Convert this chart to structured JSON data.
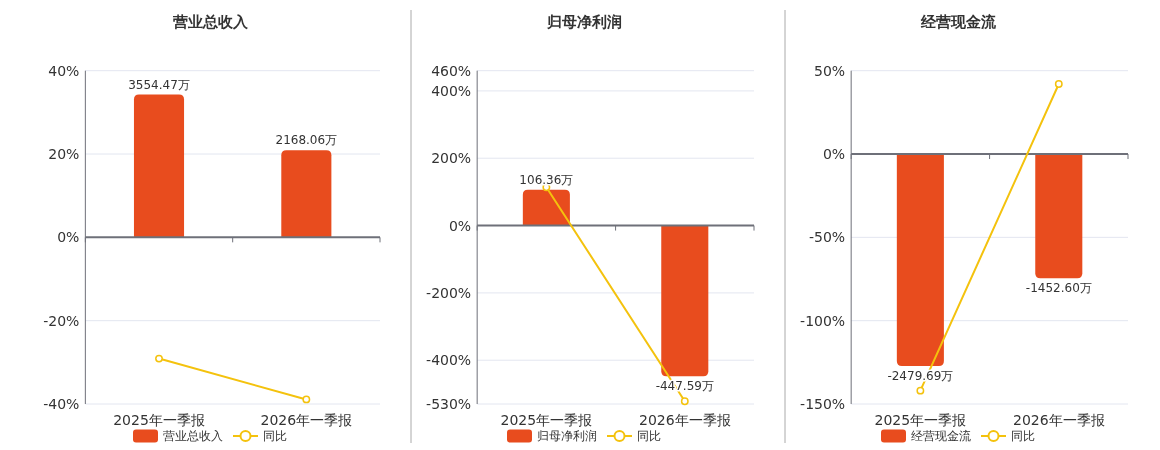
{
  "chart_data": [
    {
      "type": "bar",
      "title": "营业总收入",
      "categories": [
        "2025年一季报",
        "2026年一季报"
      ],
      "series": [
        {
          "name": "营业总收入",
          "axis": "y2",
          "color": "#e84c1e",
          "values": [
            3554.47,
            2168.06
          ],
          "value_labels": [
            "3554.47万",
            "2168.06万"
          ]
        },
        {
          "name": "同比",
          "type": "line",
          "color": "#f4c20d",
          "values": [
            -29.1,
            -38.9
          ]
        }
      ],
      "ylim": [
        -40,
        40
      ],
      "yticks": [
        {
          "value": 40,
          "label": "40%"
        },
        {
          "value": 20,
          "label": "20%"
        },
        {
          "value": 0,
          "label": "0%"
        },
        {
          "value": -20,
          "label": "-20%"
        },
        {
          "value": -40,
          "label": "-40%"
        }
      ],
      "y2lim": [
        -4150,
        4150
      ],
      "tick_labels": "xy",
      "grid": "y",
      "legend": "bottom",
      "marker": "circle"
    },
    {
      "type": "bar",
      "title": "归母净利润",
      "categories": [
        "2025年一季报",
        "2026年一季报"
      ],
      "series": [
        {
          "name": "归母净利润",
          "axis": "y2",
          "color": "#e84c1e",
          "values": [
            106.36,
            -447.59
          ],
          "value_labels": [
            "106.36万",
            "-447.59万"
          ]
        },
        {
          "name": "同比",
          "type": "line",
          "color": "#f4c20d",
          "values": [
            114,
            -522
          ]
        }
      ],
      "ylim": [
        -530,
        460
      ],
      "yticks": [
        {
          "value": 460,
          "label": "460%"
        },
        {
          "value": 400,
          "label": "400%"
        },
        {
          "value": 200,
          "label": "200%"
        },
        {
          "value": 0,
          "label": "0%"
        },
        {
          "value": -200,
          "label": "-200%"
        },
        {
          "value": -400,
          "label": "-400%"
        },
        {
          "value": -530,
          "label": "-530%"
        }
      ],
      "y2lim": [
        -530,
        460
      ],
      "tick_labels": "xy",
      "grid": "y",
      "legend": "bottom",
      "marker": "circle"
    },
    {
      "type": "bar",
      "title": "经营现金流",
      "categories": [
        "2025年一季报",
        "2026年一季报"
      ],
      "series": [
        {
          "name": "经营现金流",
          "axis": "y2",
          "color": "#e84c1e",
          "values": [
            -2479.69,
            -1452.6
          ],
          "value_labels": [
            "-2479.69万",
            "-1452.60万"
          ]
        },
        {
          "name": "同比",
          "type": "line",
          "color": "#f4c20d",
          "values": [
            -142,
            42
          ]
        }
      ],
      "ylim": [
        -150,
        50
      ],
      "yticks": [
        {
          "value": 50,
          "label": "50%"
        },
        {
          "value": 0,
          "label": "0%"
        },
        {
          "value": -50,
          "label": "-50%"
        },
        {
          "value": -100,
          "label": "-100%"
        },
        {
          "value": -150,
          "label": "-150%"
        }
      ],
      "y2lim": [
        -2925,
        975
      ],
      "tick_labels": "xy",
      "grid": "y",
      "legend": "bottom",
      "marker": "circle"
    }
  ]
}
